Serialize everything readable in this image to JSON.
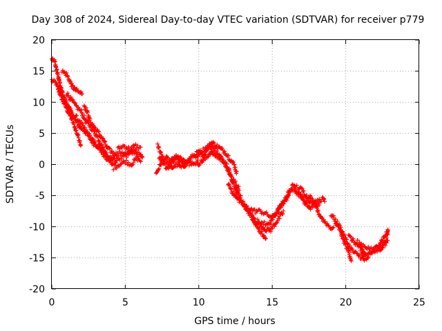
{
  "chart_data": {
    "type": "scatter",
    "title": "Day 308 of 2024, Sidereal Day-to-day VTEC variation (SDTVAR) for receiver p779",
    "xlabel": "GPS time / hours",
    "ylabel": "SDTVAR / TECUs",
    "xlim": [
      0,
      25
    ],
    "ylim": [
      -20,
      20
    ],
    "xticks": [
      "0",
      "5",
      "10",
      "15",
      "20",
      "25"
    ],
    "yticks": [
      "20",
      "15",
      "10",
      "5",
      "0",
      "-5",
      "-10",
      "-15",
      "-20"
    ],
    "grid": true,
    "marker": "plus",
    "series": [
      {
        "name": "SDTVAR",
        "color": "#ff0000",
        "tracks": [
          [
            [
              0.0,
              13.5
            ],
            [
              0.3,
              13.0
            ],
            [
              0.6,
              11.0
            ],
            [
              1.0,
              9.0
            ],
            [
              1.4,
              7.0
            ],
            [
              1.8,
              4.5
            ],
            [
              2.0,
              3.0
            ]
          ],
          [
            [
              0.0,
              17.0
            ],
            [
              0.2,
              16.5
            ],
            [
              0.4,
              14.5
            ],
            [
              0.6,
              12.5
            ],
            [
              0.8,
              11.0
            ],
            [
              1.0,
              10.0
            ],
            [
              1.3,
              8.5
            ],
            [
              1.6,
              7.0
            ],
            [
              1.9,
              6.0
            ],
            [
              2.2,
              5.5
            ],
            [
              2.5,
              4.5
            ],
            [
              2.8,
              3.5
            ],
            [
              3.1,
              3.0
            ],
            [
              3.4,
              2.0
            ],
            [
              3.7,
              1.0
            ],
            [
              4.0,
              0.5
            ]
          ],
          [
            [
              0.5,
              12.5
            ],
            [
              0.8,
              10.5
            ],
            [
              1.1,
              9.0
            ],
            [
              1.4,
              8.0
            ],
            [
              1.7,
              7.5
            ],
            [
              2.0,
              6.5
            ],
            [
              2.3,
              5.5
            ],
            [
              2.6,
              4.5
            ],
            [
              2.9,
              3.5
            ],
            [
              3.2,
              2.8
            ],
            [
              3.5,
              2.0
            ],
            [
              3.8,
              1.5
            ],
            [
              4.1,
              1.0
            ],
            [
              4.4,
              0.5
            ]
          ],
          [
            [
              0.7,
              15.0
            ],
            [
              1.0,
              14.5
            ],
            [
              1.2,
              13.5
            ],
            [
              1.4,
              12.5
            ],
            [
              1.6,
              12.0
            ],
            [
              1.9,
              11.5
            ],
            [
              2.1,
              11.5
            ]
          ],
          [
            [
              1.0,
              11.5
            ],
            [
              1.3,
              10.5
            ],
            [
              1.6,
              9.5
            ],
            [
              2.0,
              8.5
            ],
            [
              2.3,
              7.0
            ],
            [
              2.5,
              6.5
            ],
            [
              2.8,
              5.5
            ],
            [
              3.1,
              4.5
            ],
            [
              3.4,
              3.0
            ],
            [
              3.7,
              1.5
            ],
            [
              4.0,
              0.5
            ],
            [
              4.2,
              0.0
            ]
          ],
          [
            [
              2.2,
              9.5
            ],
            [
              2.4,
              8.5
            ],
            [
              2.6,
              7.0
            ],
            [
              2.9,
              6.0
            ],
            [
              3.2,
              5.0
            ],
            [
              3.5,
              4.0
            ],
            [
              3.8,
              2.5
            ],
            [
              4.1,
              2.0
            ],
            [
              4.5,
              1.5
            ]
          ],
          [
            [
              4.0,
              1.0
            ],
            [
              4.4,
              1.5
            ],
            [
              4.8,
              2.0
            ],
            [
              5.2,
              1.5
            ],
            [
              5.6,
              2.0
            ],
            [
              6.0,
              1.5
            ],
            [
              6.2,
              1.0
            ]
          ],
          [
            [
              4.2,
              -0.5
            ],
            [
              4.6,
              0.0
            ],
            [
              5.0,
              0.5
            ],
            [
              5.4,
              0.0
            ],
            [
              5.8,
              1.0
            ],
            [
              6.1,
              0.5
            ]
          ],
          [
            [
              4.5,
              2.5
            ],
            [
              4.9,
              3.0
            ],
            [
              5.3,
              2.5
            ],
            [
              5.7,
              3.0
            ],
            [
              6.1,
              2.5
            ]
          ],
          [
            [
              4.3,
              0.5
            ],
            [
              4.7,
              1.0
            ],
            [
              5.1,
              1.5
            ],
            [
              5.5,
              2.5
            ],
            [
              5.9,
              2.0
            ]
          ],
          [
            [
              7.1,
              -1.5
            ],
            [
              7.3,
              -0.5
            ],
            [
              7.5,
              0.5
            ],
            [
              7.8,
              1.0
            ],
            [
              8.1,
              0.5
            ],
            [
              8.4,
              1.0
            ],
            [
              8.7,
              0.5
            ],
            [
              9.0,
              0.0
            ],
            [
              9.3,
              0.5
            ],
            [
              9.6,
              0.0
            ],
            [
              10.0,
              0.5
            ]
          ],
          [
            [
              7.2,
              3.0
            ],
            [
              7.4,
              2.0
            ],
            [
              7.6,
              1.0
            ],
            [
              7.9,
              0.0
            ],
            [
              8.2,
              -0.5
            ],
            [
              8.5,
              0.0
            ],
            [
              8.8,
              -0.5
            ],
            [
              9.1,
              0.0
            ],
            [
              9.4,
              1.0
            ],
            [
              9.7,
              1.5
            ],
            [
              10.0,
              2.0
            ]
          ],
          [
            [
              7.3,
              1.0
            ],
            [
              7.6,
              0.0
            ],
            [
              7.9,
              -0.5
            ],
            [
              8.2,
              0.5
            ],
            [
              8.5,
              1.5
            ],
            [
              8.8,
              1.0
            ],
            [
              9.1,
              0.5
            ],
            [
              9.4,
              0.0
            ]
          ],
          [
            [
              9.8,
              1.0
            ],
            [
              10.1,
              2.0
            ],
            [
              10.4,
              2.5
            ],
            [
              10.7,
              3.0
            ],
            [
              10.9,
              3.5
            ],
            [
              11.2,
              3.0
            ],
            [
              11.5,
              2.5
            ],
            [
              11.8,
              2.0
            ],
            [
              12.1,
              1.0
            ],
            [
              12.4,
              0.0
            ],
            [
              12.6,
              -1.5
            ]
          ],
          [
            [
              9.9,
              0.0
            ],
            [
              10.2,
              0.5
            ],
            [
              10.5,
              1.0
            ],
            [
              10.8,
              2.0
            ],
            [
              11.1,
              1.5
            ],
            [
              11.4,
              1.0
            ],
            [
              11.7,
              0.5
            ],
            [
              12.0,
              -0.5
            ],
            [
              12.2,
              -2.0
            ],
            [
              12.5,
              -3.0
            ],
            [
              12.8,
              -4.0
            ]
          ],
          [
            [
              10.0,
              2.0
            ],
            [
              10.3,
              1.5
            ],
            [
              10.6,
              2.5
            ],
            [
              10.9,
              3.0
            ],
            [
              11.2,
              2.0
            ],
            [
              11.5,
              1.0
            ],
            [
              11.8,
              0.0
            ],
            [
              12.1,
              -1.5
            ],
            [
              12.3,
              -3.0
            ],
            [
              12.6,
              -4.5
            ],
            [
              12.9,
              -5.5
            ]
          ],
          [
            [
              12.0,
              -3.0
            ],
            [
              12.3,
              -4.5
            ],
            [
              12.6,
              -5.5
            ],
            [
              12.9,
              -6.0
            ],
            [
              13.2,
              -7.0
            ],
            [
              13.5,
              -8.0
            ],
            [
              13.8,
              -9.5
            ],
            [
              14.1,
              -10.5
            ],
            [
              14.4,
              -11.5
            ],
            [
              14.6,
              -12.0
            ]
          ],
          [
            [
              12.5,
              -4.0
            ],
            [
              12.8,
              -5.5
            ],
            [
              13.1,
              -6.5
            ],
            [
              13.4,
              -7.5
            ],
            [
              13.7,
              -8.5
            ],
            [
              14.0,
              -9.5
            ],
            [
              14.3,
              -10.0
            ],
            [
              14.6,
              -10.5
            ],
            [
              14.9,
              -10.5
            ],
            [
              15.2,
              -9.5
            ],
            [
              15.5,
              -8.5
            ],
            [
              15.8,
              -7.5
            ]
          ],
          [
            [
              13.0,
              -6.5
            ],
            [
              13.4,
              -7.0
            ],
            [
              13.8,
              -7.5
            ],
            [
              14.2,
              -7.5
            ],
            [
              14.6,
              -8.0
            ],
            [
              15.0,
              -8.5
            ],
            [
              15.4,
              -7.5
            ],
            [
              15.8,
              -6.0
            ],
            [
              16.1,
              -4.5
            ],
            [
              16.4,
              -3.5
            ],
            [
              16.8,
              -4.5
            ],
            [
              17.1,
              -5.5
            ],
            [
              17.4,
              -6.5
            ]
          ],
          [
            [
              14.0,
              -9.0
            ],
            [
              14.4,
              -9.5
            ],
            [
              14.8,
              -9.5
            ],
            [
              15.2,
              -8.0
            ],
            [
              15.6,
              -6.5
            ],
            [
              16.0,
              -5.5
            ],
            [
              16.3,
              -4.0
            ],
            [
              16.6,
              -3.5
            ],
            [
              17.0,
              -4.0
            ],
            [
              17.3,
              -5.0
            ],
            [
              17.6,
              -6.0
            ],
            [
              18.0,
              -6.5
            ],
            [
              18.3,
              -6.0
            ]
          ],
          [
            [
              16.5,
              -4.0
            ],
            [
              16.9,
              -5.0
            ],
            [
              17.2,
              -6.0
            ],
            [
              17.6,
              -7.0
            ],
            [
              18.0,
              -6.0
            ],
            [
              18.4,
              -5.5
            ],
            [
              18.6,
              -6.0
            ]
          ],
          [
            [
              17.5,
              -5.0
            ],
            [
              17.9,
              -6.5
            ],
            [
              18.2,
              -8.0
            ],
            [
              18.5,
              -9.0
            ],
            [
              18.9,
              -10.0
            ],
            [
              19.2,
              -10.5
            ]
          ],
          [
            [
              19.0,
              -8.0
            ],
            [
              19.3,
              -9.0
            ],
            [
              19.6,
              -10.0
            ],
            [
              19.9,
              -11.5
            ],
            [
              20.2,
              -13.0
            ],
            [
              20.5,
              -14.0
            ],
            [
              20.8,
              -14.5
            ],
            [
              21.1,
              -15.0
            ],
            [
              21.3,
              -15.5
            ]
          ],
          [
            [
              19.3,
              -9.5
            ],
            [
              19.6,
              -10.5
            ],
            [
              19.9,
              -12.5
            ],
            [
              20.2,
              -14.0
            ],
            [
              20.4,
              -15.5
            ]
          ],
          [
            [
              20.2,
              -11.5
            ],
            [
              20.6,
              -12.5
            ],
            [
              21.0,
              -13.5
            ],
            [
              21.4,
              -14.5
            ],
            [
              21.8,
              -14.0
            ],
            [
              22.2,
              -13.0
            ],
            [
              22.5,
              -12.0
            ],
            [
              22.8,
              -11.0
            ],
            [
              22.9,
              -10.5
            ]
          ],
          [
            [
              20.8,
              -12.5
            ],
            [
              21.2,
              -13.0
            ],
            [
              21.6,
              -13.5
            ],
            [
              22.0,
              -14.0
            ],
            [
              22.4,
              -13.5
            ],
            [
              22.7,
              -12.0
            ],
            [
              22.9,
              -11.0
            ]
          ],
          [
            [
              21.0,
              -14.0
            ],
            [
              21.4,
              -15.0
            ],
            [
              21.8,
              -14.0
            ],
            [
              22.2,
              -13.5
            ],
            [
              22.6,
              -13.0
            ],
            [
              22.9,
              -12.0
            ]
          ]
        ]
      }
    ]
  }
}
